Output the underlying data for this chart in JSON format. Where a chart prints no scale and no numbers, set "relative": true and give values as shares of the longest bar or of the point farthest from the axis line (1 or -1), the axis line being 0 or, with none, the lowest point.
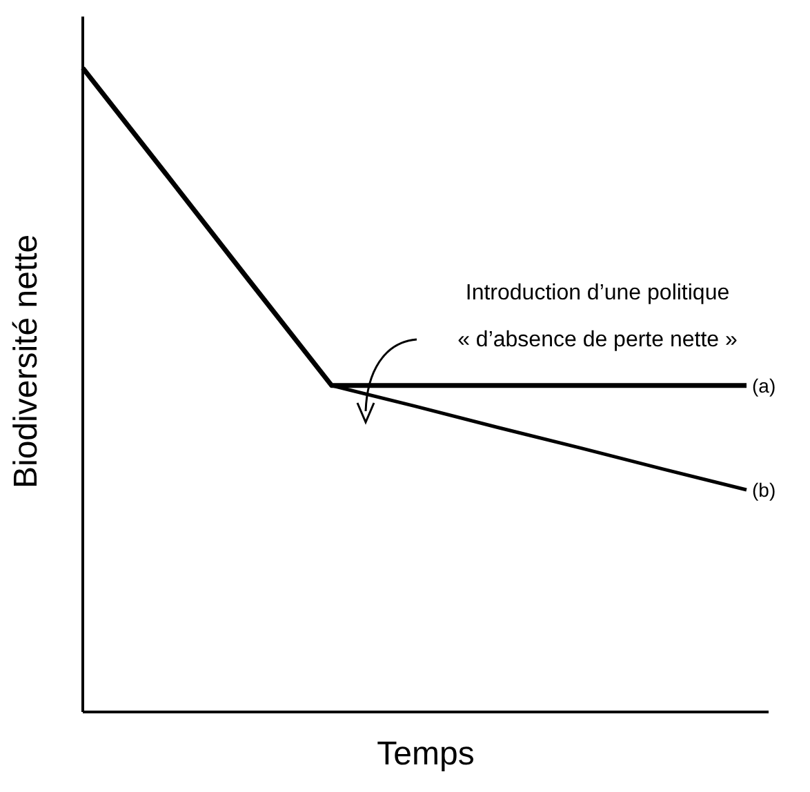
{
  "chart_data": {
    "type": "line",
    "relative": true,
    "xlabel": "Temps",
    "ylabel": "Biodiversité nette",
    "categories": [
      null,
      null,
      null,
      null,
      null,
      null,
      null,
      null,
      null
    ],
    "series": [
      {
        "name": "(a)",
        "color": "#000000",
        "values": [
          1,
          0.836,
          0.671,
          0.507,
          0.507,
          0.507,
          0.507,
          0.507,
          0.507
        ]
      },
      {
        "name": "(b)",
        "color": "#000000",
        "values": [
          null,
          null,
          null,
          0.507,
          0.475,
          0.442,
          0.41,
          0.377,
          0.345
        ]
      }
    ],
    "annotations": [
      "Introduction d’une politique\n« d’absence de perte nette »"
    ],
    "grid": false,
    "legend": false
  }
}
